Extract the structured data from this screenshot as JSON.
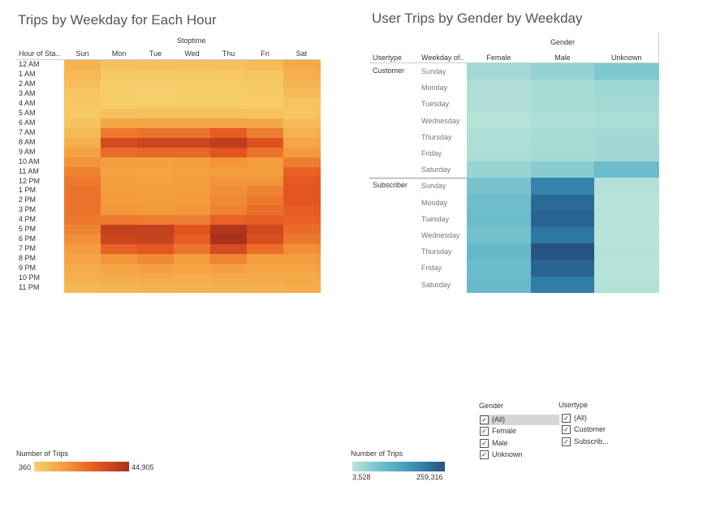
{
  "left": {
    "title": "Trips by Weekday for Each Hour",
    "col_group": "Stoptime",
    "row_header": "Hour of Sta..",
    "days": [
      "Sun",
      "Mon",
      "Tue",
      "Wed",
      "Thu",
      "Fri",
      "Sat"
    ],
    "hours": [
      "12 AM",
      "1 AM",
      "2 AM",
      "3 AM",
      "4 AM",
      "5 AM",
      "6 AM",
      "7 AM",
      "8 AM",
      "9 AM",
      "10 AM",
      "11 AM",
      "12 PM",
      "1 PM",
      "2 PM",
      "3 PM",
      "4 PM",
      "5 PM",
      "6 PM",
      "7 PM",
      "8 PM",
      "9 PM",
      "10 PM",
      "11 PM"
    ],
    "legend": {
      "title": "Number of Trips",
      "min": "360",
      "max": "44,905"
    }
  },
  "right": {
    "title": "User Trips by Gender by Weekday",
    "col_group": "Gender",
    "usertype_header": "Usertype",
    "weekday_header": "Weekday of..",
    "genders": [
      "Female",
      "Male",
      "Unknown"
    ],
    "groups": [
      {
        "name": "Customer",
        "days": [
          "Sunday",
          "Monday",
          "Tuesday",
          "Wednesday",
          "Thursday",
          "Friday",
          "Saturday"
        ]
      },
      {
        "name": "Subscriber",
        "days": [
          "Sunday",
          "Monday",
          "Tuesday",
          "Wednesday",
          "Thursday",
          "Friday",
          "Saturday"
        ]
      }
    ],
    "legend": {
      "title": "Number of Trips",
      "min": "3,528",
      "max": "259,316"
    }
  },
  "filters": {
    "gender": {
      "title": "Gender",
      "items": [
        "(All)",
        "Female",
        "Male",
        "Unknown"
      ]
    },
    "usertype": {
      "title": "Usertype",
      "items": [
        "(All)",
        "Customer",
        "Subscrib..."
      ]
    }
  },
  "chart_data": [
    {
      "type": "heatmap",
      "title": "Trips by Weekday for Each Hour",
      "x": [
        "Sun",
        "Mon",
        "Tue",
        "Wed",
        "Thu",
        "Fri",
        "Sat"
      ],
      "y": [
        "12 AM",
        "1 AM",
        "2 AM",
        "3 AM",
        "4 AM",
        "5 AM",
        "6 AM",
        "7 AM",
        "8 AM",
        "9 AM",
        "10 AM",
        "11 AM",
        "12 PM",
        "1 PM",
        "2 PM",
        "3 PM",
        "4 PM",
        "5 PM",
        "6 PM",
        "7 PM",
        "8 PM",
        "9 PM",
        "10 PM",
        "11 PM"
      ],
      "value_range": [
        360,
        44905
      ],
      "colors": [
        "#f6d16e",
        "#a8321e"
      ],
      "values": [
        [
          8000,
          4000,
          3500,
          3800,
          4200,
          5500,
          12000
        ],
        [
          6000,
          2000,
          1800,
          2000,
          2200,
          3000,
          9000
        ],
        [
          4500,
          1200,
          1000,
          1200,
          1300,
          1800,
          7000
        ],
        [
          3000,
          900,
          800,
          900,
          900,
          1200,
          5000
        ],
        [
          2500,
          1100,
          1000,
          1100,
          1100,
          1300,
          3500
        ],
        [
          2000,
          4000,
          4200,
          4200,
          4300,
          3800,
          3000
        ],
        [
          3500,
          13000,
          14000,
          14000,
          14500,
          12500,
          5000
        ],
        [
          5500,
          25000,
          26000,
          26000,
          30000,
          24000,
          8000
        ],
        [
          9000,
          35000,
          37000,
          37000,
          40000,
          33000,
          13000
        ],
        [
          15000,
          27000,
          28000,
          28000,
          32000,
          26000,
          19000
        ],
        [
          20000,
          17000,
          16000,
          17000,
          20000,
          18000,
          24000
        ],
        [
          23000,
          15000,
          14000,
          15000,
          17000,
          17000,
          29000
        ],
        [
          25000,
          17000,
          16000,
          17000,
          20000,
          20000,
          31000
        ],
        [
          26000,
          18000,
          17000,
          18000,
          21000,
          23000,
          31000
        ],
        [
          26000,
          19000,
          18000,
          19000,
          22000,
          25000,
          31000
        ],
        [
          26000,
          20000,
          19000,
          20000,
          23000,
          27000,
          30000
        ],
        [
          25000,
          25000,
          24000,
          24000,
          29000,
          30000,
          29000
        ],
        [
          23000,
          39000,
          39000,
          32000,
          43000,
          36000,
          27000
        ],
        [
          21000,
          37000,
          38000,
          30000,
          44905,
          34000,
          25000
        ],
        [
          17000,
          29000,
          31000,
          26000,
          35000,
          27000,
          21000
        ],
        [
          14000,
          20000,
          22000,
          18000,
          23000,
          18000,
          17000
        ],
        [
          11000,
          14000,
          16000,
          14000,
          16000,
          14000,
          14000
        ],
        [
          8500,
          10000,
          12000,
          11000,
          12000,
          12000,
          12000
        ],
        [
          6500,
          7000,
          8000,
          7500,
          8500,
          9000,
          10000
        ]
      ]
    },
    {
      "type": "heatmap",
      "title": "User Trips by Gender by Weekday",
      "x": [
        "Female",
        "Male",
        "Unknown"
      ],
      "y": [
        "Customer Sunday",
        "Customer Monday",
        "Customer Tuesday",
        "Customer Wednesday",
        "Customer Thursday",
        "Customer Friday",
        "Customer Saturday",
        "Subscriber Sunday",
        "Subscriber Monday",
        "Subscriber Tuesday",
        "Subscriber Wednesday",
        "Subscriber Thursday",
        "Subscriber Friday",
        "Subscriber Saturday"
      ],
      "value_range": [
        3528,
        259316
      ],
      "colors": [
        "#b7e3d8",
        "#275381"
      ],
      "values": [
        [
          20000,
          35000,
          60000
        ],
        [
          8000,
          15000,
          25000
        ],
        [
          7000,
          13000,
          20000
        ],
        [
          4000,
          9000,
          12000
        ],
        [
          9000,
          16000,
          22000
        ],
        [
          10000,
          18000,
          24000
        ],
        [
          30000,
          50000,
          85000
        ],
        [
          70000,
          170000,
          5000
        ],
        [
          80000,
          215000,
          4000
        ],
        [
          85000,
          225000,
          3800
        ],
        [
          75000,
          190000,
          3600
        ],
        [
          95000,
          259316,
          4200
        ],
        [
          85000,
          225000,
          3900
        ],
        [
          90000,
          180000,
          6000
        ]
      ]
    }
  ]
}
